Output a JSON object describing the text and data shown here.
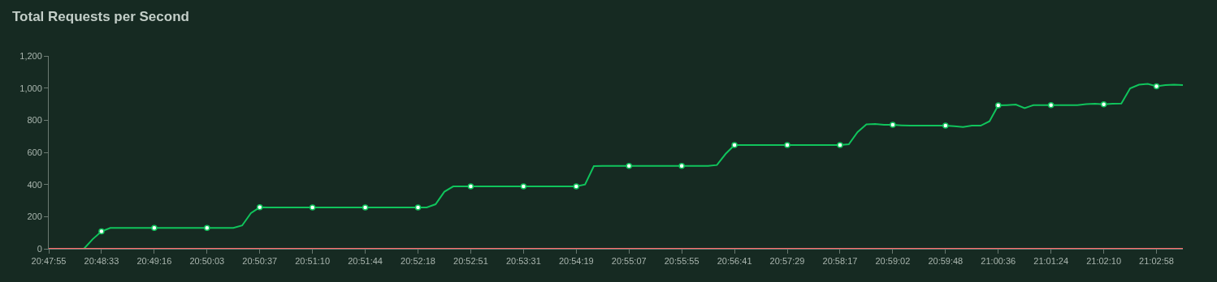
{
  "chart_data": {
    "type": "line",
    "title": "Total Requests per Second",
    "categories": [
      "20:47:55",
      null,
      null,
      null,
      null,
      null,
      "20:48:33",
      null,
      null,
      null,
      null,
      null,
      "20:49:16",
      null,
      null,
      null,
      null,
      null,
      "20:50:03",
      null,
      null,
      null,
      null,
      null,
      "20:50:37",
      null,
      null,
      null,
      null,
      null,
      "20:51:10",
      null,
      null,
      null,
      null,
      null,
      "20:51:44",
      null,
      null,
      null,
      null,
      null,
      "20:52:18",
      null,
      null,
      null,
      null,
      null,
      "20:52:51",
      null,
      null,
      null,
      null,
      null,
      "20:53:31",
      null,
      null,
      null,
      null,
      null,
      "20:54:19",
      null,
      null,
      null,
      null,
      null,
      "20:55:07",
      null,
      null,
      null,
      null,
      null,
      "20:55:55",
      null,
      null,
      null,
      null,
      null,
      "20:56:41",
      null,
      null,
      null,
      null,
      null,
      "20:57:29",
      null,
      null,
      null,
      null,
      null,
      "20:58:17",
      null,
      null,
      null,
      null,
      null,
      "20:59:02",
      null,
      null,
      null,
      null,
      null,
      "20:59:48",
      null,
      null,
      null,
      null,
      null,
      "21:00:36",
      null,
      null,
      null,
      null,
      null,
      "21:01:24",
      null,
      null,
      null,
      null,
      null,
      "21:02:10",
      null,
      null,
      null,
      null,
      null,
      "21:02:58",
      null,
      null,
      null
    ],
    "series": [
      {
        "color": "#10c45c",
        "marker": "none",
        "values": [
          null,
          null,
          null,
          null,
          0,
          60,
          108,
          130,
          130,
          130,
          130,
          130,
          130,
          130,
          130,
          130,
          130,
          130,
          130,
          130,
          130,
          130,
          145,
          222,
          258,
          257,
          257,
          257,
          257,
          257,
          257,
          257,
          257,
          257,
          257,
          257,
          257,
          257,
          257,
          257,
          257,
          257,
          257,
          257,
          277,
          355,
          388,
          388,
          388,
          388,
          388,
          388,
          388,
          388,
          388,
          388,
          388,
          388,
          388,
          388,
          388,
          400,
          514,
          515,
          515,
          515,
          515,
          515,
          515,
          515,
          515,
          515,
          515,
          515,
          515,
          515,
          521,
          591,
          645,
          646,
          646,
          646,
          646,
          646,
          646,
          646,
          646,
          646,
          646,
          646,
          646,
          650,
          726,
          774,
          776,
          771,
          771,
          768,
          766,
          766,
          766,
          766,
          766,
          763,
          758,
          766,
          766,
          793,
          892,
          894,
          897,
          875,
          894,
          894,
          894,
          894,
          894,
          894,
          900,
          902,
          899,
          902,
          904,
          998,
          1021,
          1026,
          1011,
          1018,
          1021,
          1018
        ]
      },
      {
        "type": "scatter",
        "color": "#10c45c",
        "marker": "circle",
        "values": [
          null,
          null,
          null,
          null,
          null,
          null,
          108,
          null,
          null,
          null,
          null,
          null,
          130,
          null,
          null,
          null,
          null,
          null,
          130,
          null,
          null,
          null,
          null,
          null,
          258,
          null,
          null,
          null,
          null,
          null,
          257,
          null,
          null,
          null,
          null,
          null,
          257,
          null,
          null,
          null,
          null,
          null,
          257,
          null,
          null,
          null,
          null,
          null,
          388,
          null,
          null,
          null,
          null,
          null,
          388,
          null,
          null,
          null,
          null,
          null,
          388,
          null,
          null,
          null,
          null,
          null,
          515,
          null,
          null,
          null,
          null,
          null,
          515,
          null,
          null,
          null,
          null,
          null,
          645,
          null,
          null,
          null,
          null,
          null,
          646,
          null,
          null,
          null,
          null,
          null,
          646,
          null,
          null,
          null,
          null,
          null,
          771,
          null,
          null,
          null,
          null,
          null,
          766,
          null,
          null,
          null,
          null,
          null,
          892,
          null,
          null,
          null,
          null,
          null,
          894,
          null,
          null,
          null,
          null,
          null,
          899,
          null,
          null,
          null,
          null,
          null,
          1011,
          null,
          null,
          null
        ]
      },
      {
        "color": "#ff6b6b",
        "marker": "none",
        "values": [
          0,
          0,
          0,
          0,
          0,
          0,
          0,
          0,
          0,
          0,
          0,
          0,
          0,
          0,
          0,
          0,
          0,
          0,
          0,
          0,
          0,
          0,
          0,
          0,
          0,
          0,
          0,
          0,
          0,
          0,
          0,
          0,
          0,
          0,
          0,
          0,
          0,
          0,
          0,
          0,
          0,
          0,
          0,
          0,
          0,
          0,
          0,
          0,
          0,
          0,
          0,
          0,
          0,
          0,
          0,
          0,
          0,
          0,
          0,
          0,
          0,
          0,
          0,
          0,
          0,
          0,
          0,
          0,
          0,
          0,
          0,
          0,
          0,
          0,
          0,
          0,
          0,
          0,
          0,
          0,
          0,
          0,
          0,
          0,
          0,
          0,
          0,
          0,
          0,
          0,
          0,
          0,
          0,
          0,
          0,
          0,
          0,
          0,
          0,
          0,
          0,
          0,
          0,
          0,
          0,
          0,
          0,
          0,
          0,
          0,
          0,
          0,
          0,
          0,
          0,
          0,
          0,
          0,
          0,
          0,
          0,
          0,
          0,
          0,
          0,
          0,
          0,
          0,
          0,
          0
        ]
      }
    ],
    "ylim": [
      0,
      1200
    ],
    "yticks": [
      0,
      {
        "value": 200,
        "label": "200"
      },
      {
        "value": 400,
        "label": "400"
      },
      {
        "value": 600,
        "label": "600"
      },
      {
        "value": 800,
        "label": "800"
      },
      {
        "value": 1000,
        "label": "1,000"
      },
      {
        "value": 1200,
        "label": "1,200"
      }
    ],
    "grid": false,
    "line_style": "solid"
  }
}
